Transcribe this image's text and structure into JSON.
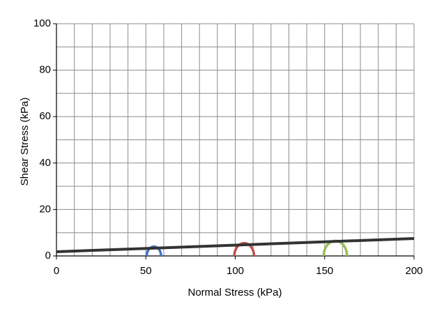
{
  "chart_data": {
    "type": "mohr",
    "xlabel": "Normal Stress (kPa)",
    "ylabel": "Shear Stress (kPa)",
    "xlim": [
      0,
      200
    ],
    "ylim": [
      0,
      100
    ],
    "xticks": [
      0,
      50,
      100,
      150,
      200
    ],
    "yticks": [
      0,
      20,
      40,
      60,
      80,
      100
    ],
    "xgrid": [
      0,
      10,
      20,
      30,
      40,
      50,
      60,
      70,
      80,
      90,
      100,
      110,
      120,
      130,
      140,
      150,
      160,
      170,
      180,
      190,
      200
    ],
    "ygrid": [
      0,
      10,
      20,
      30,
      40,
      50,
      60,
      70,
      80,
      90,
      100
    ],
    "grid": true,
    "circles": [
      {
        "center": 54.5,
        "radius": 4,
        "color": "#4472c4"
      },
      {
        "center": 105,
        "radius": 5.5,
        "color": "#c0504d"
      },
      {
        "center": 156,
        "radius": 6.5,
        "color": "#9bbb59"
      }
    ],
    "envelope": {
      "x": [
        0,
        200
      ],
      "y": [
        1.8,
        7.5
      ],
      "color": "#333333"
    }
  }
}
